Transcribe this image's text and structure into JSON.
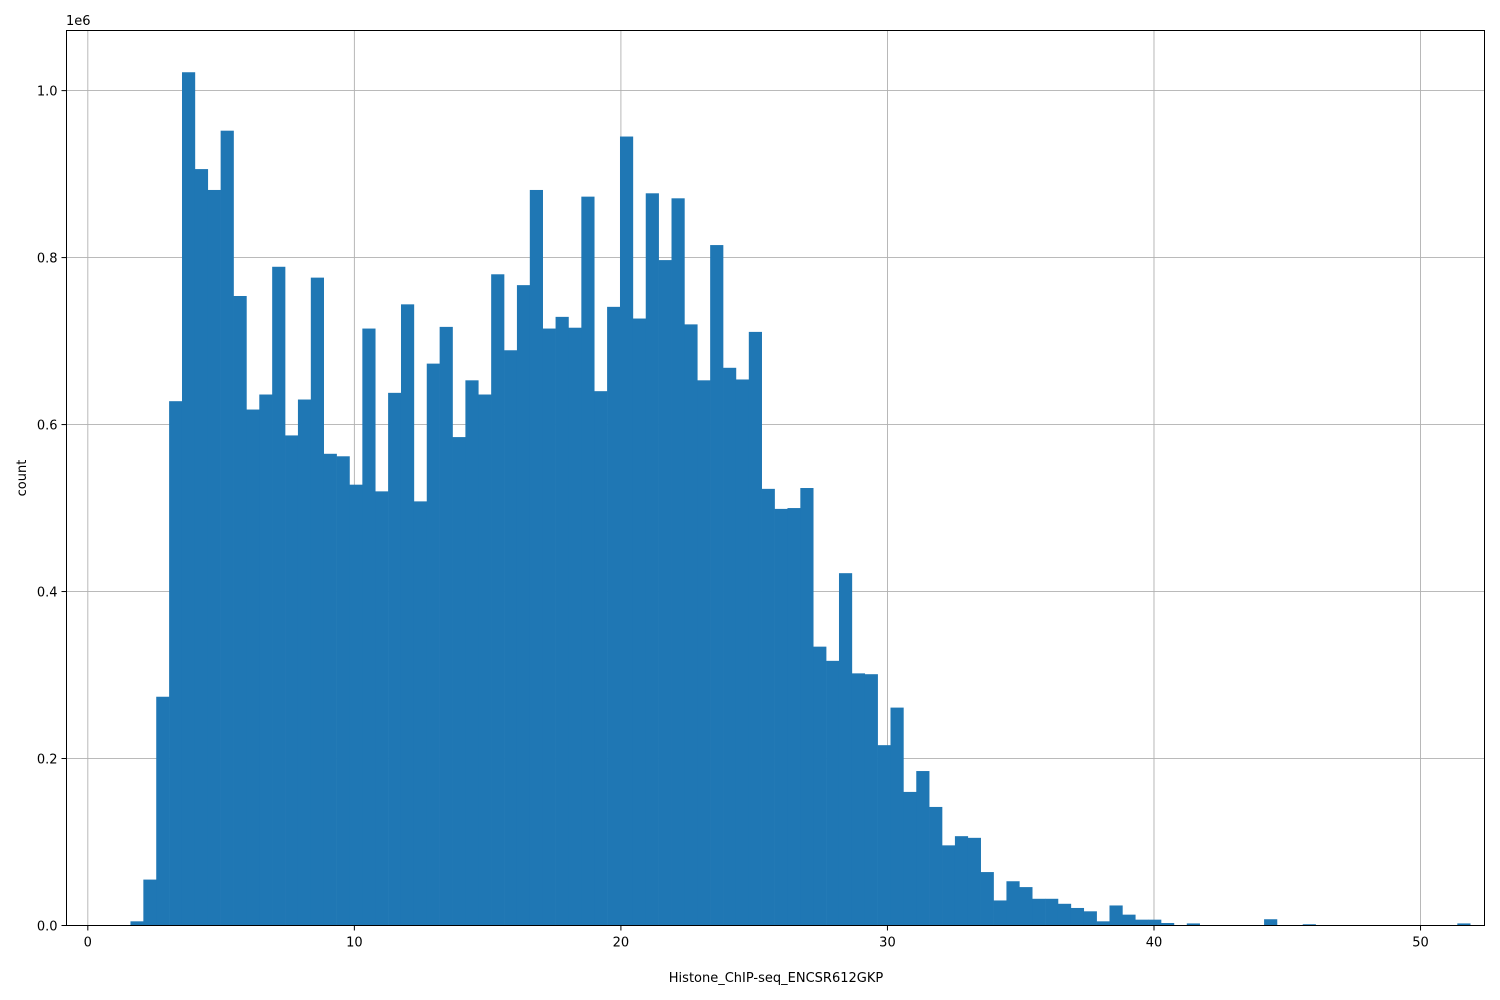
{
  "chart_data": {
    "type": "bar",
    "title": "",
    "xlabel": "Histone_ChIP-seq_ENCSR612GKP",
    "ylabel": "count",
    "y_multiplier_label": "1e6",
    "xlim": [
      -0.8,
      52.4
    ],
    "ylim": [
      0,
      1.072
    ],
    "grid": true,
    "x_ticks": [
      0,
      10,
      20,
      30,
      40,
      50
    ],
    "x_tick_labels": [
      "0",
      "10",
      "20",
      "30",
      "40",
      "50"
    ],
    "y_ticks": [
      0.0,
      0.2,
      0.4,
      0.6,
      0.8,
      1.0
    ],
    "y_tick_labels": [
      "0.0",
      "0.2",
      "0.4",
      "0.6",
      "0.8",
      "1.0"
    ],
    "bar_color": "#1f77b4",
    "bins": {
      "start": 1.6,
      "width": 0.4833,
      "values": [
        0.005,
        0.055,
        0.274,
        0.628,
        1.022,
        0.906,
        0.881,
        0.952,
        0.754,
        0.618,
        0.636,
        0.789,
        0.587,
        0.63,
        0.776,
        0.565,
        0.562,
        0.528,
        0.715,
        0.52,
        0.638,
        0.744,
        0.508,
        0.673,
        0.717,
        0.585,
        0.653,
        0.636,
        0.78,
        0.689,
        0.767,
        0.881,
        0.715,
        0.729,
        0.716,
        0.873,
        0.64,
        0.741,
        0.945,
        0.727,
        0.877,
        0.797,
        0.871,
        0.72,
        0.653,
        0.815,
        0.668,
        0.654,
        0.711,
        0.523,
        0.499,
        0.5,
        0.524,
        0.334,
        0.317,
        0.422,
        0.302,
        0.301,
        0.216,
        0.261,
        0.16,
        0.185,
        0.142,
        0.096,
        0.107,
        0.105,
        0.064,
        0.03,
        0.053,
        0.046,
        0.032,
        0.032,
        0.026,
        0.021,
        0.017,
        0.005,
        0.024,
        0.013,
        0.007,
        0.007,
        0.003,
        0.0005,
        0.0025,
        0.0003,
        0.0003,
        0.0005,
        0.0003,
        0.0003,
        0.0075,
        0.0003,
        0.0003,
        0.0015,
        0.0003,
        0.0003,
        0.0003,
        0.0003,
        0.0003,
        0.0003,
        0.0003,
        0.0003,
        0.0003,
        0.0003,
        0.0003,
        0.0025
      ]
    }
  }
}
